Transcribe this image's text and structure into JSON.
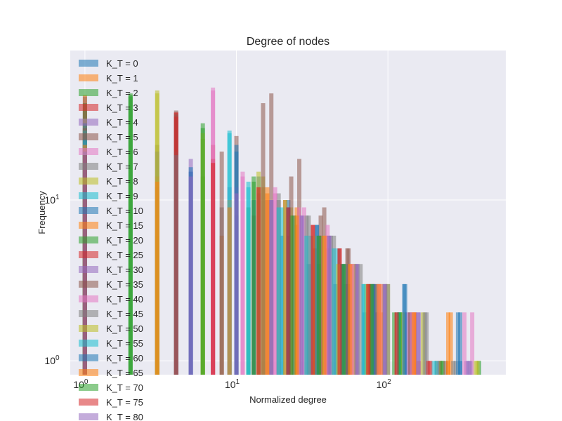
{
  "chart_data": {
    "type": "histogram",
    "title": "Degree of nodes",
    "xlabel": "Normalized degree",
    "ylabel": "Frequency",
    "xscale": "log",
    "yscale": "log",
    "xlim": [
      0.8,
      600
    ],
    "ylim": [
      0.82,
      85
    ],
    "grid": true,
    "legend_position": "top-left",
    "bar_alpha": 0.55,
    "x_ticks": [
      {
        "base": "10",
        "exp": "0",
        "value": 1
      },
      {
        "base": "10",
        "exp": "1",
        "value": 10
      },
      {
        "base": "10",
        "exp": "2",
        "value": 100
      }
    ],
    "y_ticks": [
      {
        "base": "10",
        "exp": "0",
        "value": 1
      },
      {
        "base": "10",
        "exp": "1",
        "value": 10
      }
    ],
    "series": [
      {
        "name": "K_T = 0",
        "color": "#1f77b4",
        "x": [
          1,
          3,
          10,
          14,
          20,
          30,
          45,
          70,
          130,
          300
        ],
        "y": [
          36,
          12,
          8,
          14,
          6,
          4,
          3,
          2,
          2,
          1
        ]
      },
      {
        "name": "K_T = 1",
        "color": "#ff7f0e",
        "x": [
          1,
          3,
          8,
          15,
          25,
          40,
          60,
          90,
          160,
          250
        ],
        "y": [
          45,
          8,
          6,
          12,
          7,
          5,
          4,
          2,
          1,
          1
        ]
      },
      {
        "name": "K_T = 2",
        "color": "#2ca02c",
        "x": [
          1,
          2,
          3,
          6,
          12,
          22,
          35,
          55,
          110,
          400
        ],
        "y": [
          40,
          45,
          6,
          14,
          9,
          6,
          4,
          3,
          2,
          1
        ]
      },
      {
        "name": "K_T = 3",
        "color": "#d62728",
        "x": [
          1,
          4,
          7,
          13,
          21,
          33,
          50,
          80,
          150,
          220
        ],
        "y": [
          30,
          35,
          22,
          8,
          10,
          5,
          4,
          3,
          2,
          1
        ]
      },
      {
        "name": "K_T = 4",
        "color": "#9467bd",
        "x": [
          1,
          5,
          9,
          16,
          24,
          36,
          52,
          85,
          140,
          330
        ],
        "y": [
          25,
          18,
          12,
          10,
          8,
          6,
          3,
          2,
          2,
          1
        ]
      },
      {
        "name": "K_T = 5",
        "color": "#8c564b",
        "x": [
          1,
          4,
          10,
          17,
          26,
          38,
          55,
          75,
          120,
          210
        ],
        "y": [
          44,
          36,
          25,
          46,
          18,
          9,
          5,
          3,
          2,
          1
        ]
      },
      {
        "name": "K_T = 6",
        "color": "#e377c2",
        "x": [
          1,
          7,
          11,
          18,
          28,
          40,
          58,
          88,
          135,
          360
        ],
        "y": [
          20,
          50,
          15,
          12,
          9,
          7,
          4,
          3,
          2,
          2
        ]
      },
      {
        "name": "K_T = 7",
        "color": "#7f7f7f",
        "x": [
          1,
          3,
          8,
          19,
          29,
          42,
          62,
          95,
          180,
          280
        ],
        "y": [
          28,
          22,
          9,
          11,
          8,
          6,
          4,
          3,
          2,
          1
        ]
      },
      {
        "name": "K_T = 8",
        "color": "#bcbd22",
        "x": [
          1,
          3,
          6,
          15,
          23,
          37,
          60,
          100,
          170,
          380
        ],
        "y": [
          32,
          48,
          24,
          14,
          9,
          6,
          4,
          3,
          2,
          1
        ]
      },
      {
        "name": "K_T = 9",
        "color": "#17becf",
        "x": [
          1,
          4,
          9,
          12,
          20,
          31,
          47,
          70,
          120,
          200
        ],
        "y": [
          26,
          20,
          27,
          13,
          9,
          6,
          5,
          3,
          2,
          1
        ]
      },
      {
        "name": "K_T = 10",
        "color": "#1f77b4",
        "x": [
          1,
          5,
          10,
          14,
          22,
          34,
          53,
          82,
          130,
          300
        ],
        "y": [
          30,
          16,
          22,
          11,
          10,
          7,
          4,
          3,
          3,
          2
        ]
      },
      {
        "name": "K_T = 15",
        "color": "#ff7f0e",
        "x": [
          1,
          3,
          9,
          16,
          25,
          39,
          57,
          90,
          150,
          260
        ],
        "y": [
          24,
          14,
          10,
          12,
          9,
          6,
          4,
          3,
          2,
          2
        ]
      },
      {
        "name": "K_T = 20",
        "color": "#2ca02c",
        "x": [
          1,
          2,
          6,
          13,
          24,
          35,
          51,
          78,
          120,
          230
        ],
        "y": [
          22,
          46,
          30,
          14,
          8,
          6,
          4,
          3,
          2,
          1
        ]
      },
      {
        "name": "K_T = 25",
        "color": "#d62728",
        "x": [
          1,
          4,
          7,
          14,
          22,
          32,
          48,
          75,
          115,
          190
        ],
        "y": [
          20,
          35,
          18,
          12,
          9,
          7,
          5,
          3,
          2,
          1
        ]
      },
      {
        "name": "K_T = 30",
        "color": "#9467bd",
        "x": [
          1,
          5,
          10,
          17,
          27,
          41,
          63,
          96,
          160,
          350
        ],
        "y": [
          21,
          15,
          12,
          10,
          8,
          6,
          4,
          3,
          2,
          1
        ]
      },
      {
        "name": "K_T = 35",
        "color": "#8c564b",
        "x": [
          1,
          4,
          8,
          15,
          23,
          36,
          54,
          84,
          140,
          240
        ],
        "y": [
          28,
          34,
          20,
          40,
          14,
          8,
          5,
          3,
          2,
          1
        ]
      },
      {
        "name": "K_T = 40",
        "color": "#e377c2",
        "x": [
          1,
          7,
          11,
          18,
          26,
          39,
          58,
          88,
          145,
          320
        ],
        "y": [
          19,
          48,
          14,
          11,
          9,
          6,
          4,
          3,
          2,
          2
        ]
      },
      {
        "name": "K_T = 45",
        "color": "#7f7f7f",
        "x": [
          1,
          3,
          9,
          19,
          30,
          44,
          66,
          100,
          175,
          270
        ],
        "y": [
          23,
          20,
          9,
          10,
          8,
          6,
          4,
          3,
          2,
          1
        ]
      },
      {
        "name": "K_T = 50",
        "color": "#bcbd22",
        "x": [
          1,
          3,
          6,
          14,
          21,
          33,
          47,
          72,
          125,
          390
        ],
        "y": [
          27,
          46,
          26,
          15,
          10,
          6,
          4,
          3,
          2,
          1
        ]
      },
      {
        "name": "K_T = 55",
        "color": "#17becf",
        "x": [
          1,
          4,
          9,
          12,
          19,
          29,
          44,
          69,
          118,
          210
        ],
        "y": [
          24,
          19,
          26,
          12,
          9,
          6,
          5,
          3,
          2,
          1
        ]
      },
      {
        "name": "K_T = 60",
        "color": "#1f77b4",
        "x": [
          1,
          5,
          10,
          13,
          22,
          34,
          50,
          80,
          128,
          290
        ],
        "y": [
          27,
          15,
          20,
          10,
          9,
          7,
          4,
          3,
          3,
          2
        ]
      },
      {
        "name": "K_T = 65",
        "color": "#ff7f0e",
        "x": [
          1,
          3,
          9,
          16,
          25,
          38,
          56,
          87,
          148,
          250
        ],
        "y": [
          22,
          13,
          9,
          11,
          8,
          6,
          4,
          3,
          2,
          2
        ]
      },
      {
        "name": "K_T = 70",
        "color": "#2ca02c",
        "x": [
          1,
          2,
          6,
          13,
          23,
          35,
          51,
          78,
          119,
          225
        ],
        "y": [
          20,
          44,
          28,
          13,
          8,
          6,
          4,
          3,
          2,
          1
        ]
      },
      {
        "name": "K_T = 75",
        "color": "#d62728",
        "x": [
          1,
          4,
          7,
          14,
          22,
          32,
          48,
          74,
          114,
          185
        ],
        "y": [
          19,
          33,
          17,
          12,
          9,
          7,
          5,
          3,
          2,
          1
        ]
      },
      {
        "name": "K_T = 80",
        "color": "#9467bd",
        "x": [
          1,
          5,
          10,
          17,
          27,
          41,
          62,
          95,
          158,
          340
        ],
        "y": [
          20,
          14,
          11,
          10,
          8,
          6,
          4,
          3,
          2,
          1
        ]
      }
    ]
  }
}
